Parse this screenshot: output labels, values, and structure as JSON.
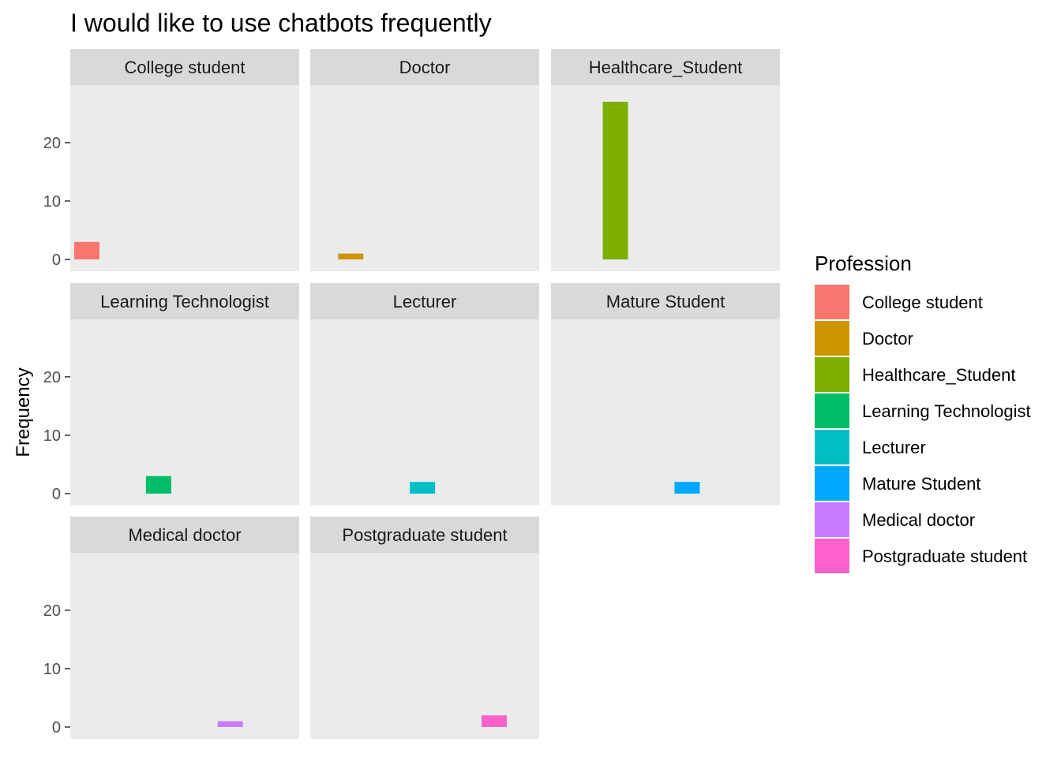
{
  "chart_data": {
    "type": "bar",
    "title": "I would like to use chatbots frequently",
    "xlabel": "",
    "ylabel": "Frequency",
    "ylim": [
      0,
      30
    ],
    "y_ticks": [
      0,
      10,
      20
    ],
    "facet_layout": "3 columns x 3 rows, shared y axis, no x axis labels",
    "grid": false,
    "legend": {
      "title": "Profession",
      "position": "right"
    },
    "panels": [
      {
        "name": "College student",
        "value": 3,
        "color": "#F8766D",
        "slot": 0
      },
      {
        "name": "Doctor",
        "value": 1,
        "color": "#CD9600",
        "slot": 1
      },
      {
        "name": "Healthcare_Student",
        "value": 27,
        "color": "#7CAE00",
        "slot": 2
      },
      {
        "name": "Learning Technologist",
        "value": 3,
        "color": "#00BE67",
        "slot": 3
      },
      {
        "name": "Lecturer",
        "value": 2,
        "color": "#00BFC4",
        "slot": 4
      },
      {
        "name": "Mature Student",
        "value": 2,
        "color": "#00A9FF",
        "slot": 5
      },
      {
        "name": "Medical doctor",
        "value": 1,
        "color": "#C77CFF",
        "slot": 6
      },
      {
        "name": "Postgraduate student",
        "value": 2,
        "color": "#FF61CC",
        "slot": 7
      }
    ]
  }
}
